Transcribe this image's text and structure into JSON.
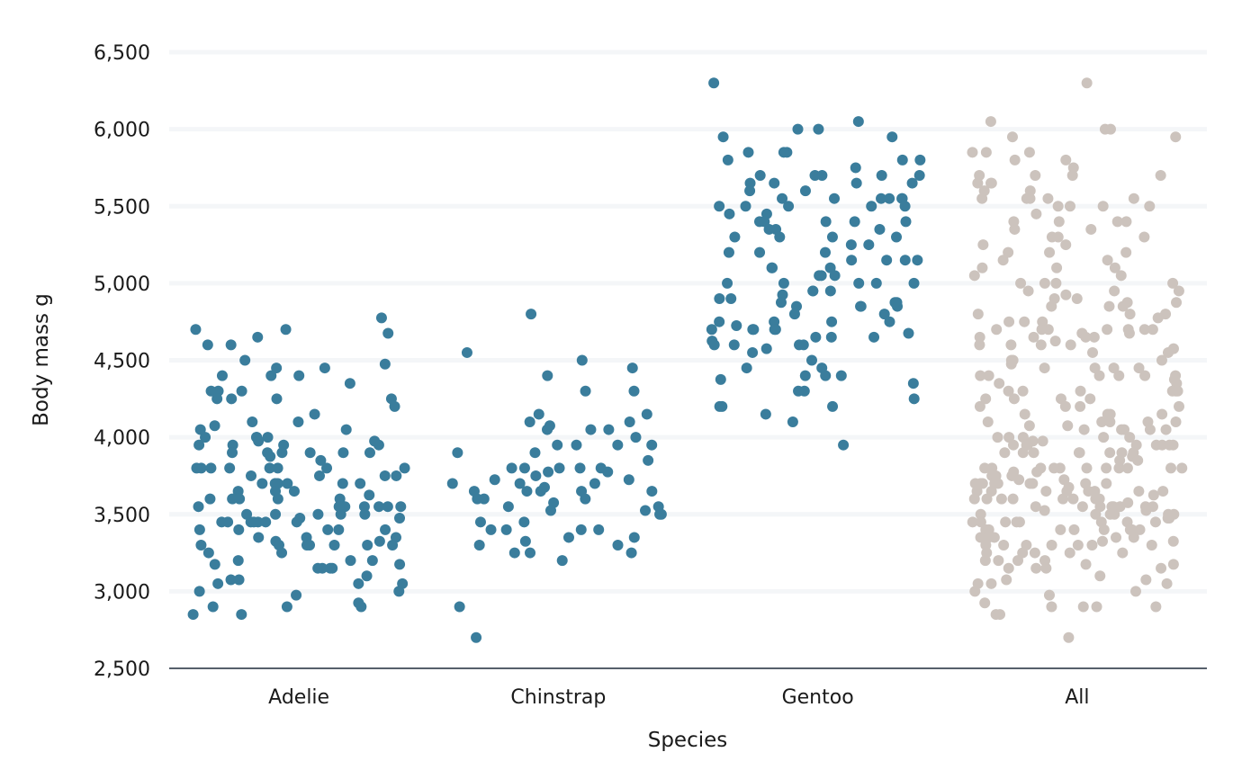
{
  "colors": {
    "species_points": "#3a7d9c",
    "all_points": "#ccc3bd",
    "grid": "#f4f6f8",
    "axis": "#1e2a3a",
    "text": "#1a1a1a",
    "background": "#ffffff"
  },
  "chart_data": {
    "type": "scatter",
    "xlabel": "Species",
    "ylabel": "Body mass g",
    "ylim": [
      2500,
      6500
    ],
    "grid": true,
    "legend": "none",
    "x_ticks": [
      "Adelie",
      "Chinstrap",
      "Gentoo",
      "All"
    ],
    "y_ticks": [
      2500,
      3000,
      3500,
      4000,
      4500,
      5000,
      5500,
      6000,
      6500
    ],
    "y_tick_labels": [
      "2,500",
      "3,000",
      "3,500",
      "4,000",
      "4,500",
      "5,000",
      "5,500",
      "6,000",
      "6,500"
    ],
    "series": [
      {
        "category": "Adelie",
        "color": "#3a7d9c",
        "values": [
          4775,
          4675,
          4600,
          4450,
          4475,
          4400,
          4400,
          4400,
          4450,
          4300,
          4300,
          4250,
          4250,
          4250,
          4100,
          4100,
          4075,
          4050,
          4000,
          4000,
          3950,
          3950,
          3950,
          3900,
          3900,
          3900,
          3900,
          3900,
          3900,
          3850,
          3800,
          3800,
          3800,
          3800,
          3800,
          3800,
          3800,
          3750,
          3750,
          3750,
          3700,
          3700,
          3700,
          3700,
          3700,
          3650,
          3650,
          3600,
          3600,
          3600,
          3600,
          3550,
          3550,
          3550,
          3550,
          3500,
          3500,
          3500,
          3475,
          3475,
          3450,
          3450,
          3450,
          3450,
          3400,
          3400,
          3400,
          3400,
          3350,
          3350,
          3350,
          3325,
          3300,
          3300,
          3300,
          3300,
          3300,
          3250,
          3250,
          3200,
          3200,
          3200,
          3175,
          3175,
          3150,
          3150,
          3150,
          3100,
          3075,
          3050,
          3050,
          3050,
          3000,
          3000,
          2975,
          2925,
          2900,
          2900,
          2900,
          2850,
          2850,
          4700,
          4700,
          4650,
          4600,
          4500,
          4350,
          4300,
          4250,
          4200,
          4150,
          4050,
          4000,
          4000,
          3950,
          3875,
          3750,
          3700,
          3600,
          3550,
          3450,
          3325,
          3300,
          3150,
          3075,
          3975,
          3550,
          3625,
          3400,
          3800,
          3450,
          3500,
          3550,
          3300,
          3500,
          3700,
          3450,
          3975,
          3650
        ]
      },
      {
        "category": "Chinstrap",
        "color": "#3a7d9c",
        "values": [
          4800,
          4550,
          4450,
          4500,
          4400,
          4300,
          4300,
          4150,
          4150,
          4100,
          4100,
          4050,
          4050,
          4050,
          4000,
          3950,
          3950,
          3950,
          3950,
          3900,
          3900,
          3850,
          3800,
          3800,
          3800,
          3800,
          3775,
          3775,
          3750,
          3725,
          3700,
          3700,
          3700,
          3650,
          3650,
          3650,
          3650,
          3600,
          3600,
          3600,
          3575,
          3550,
          3550,
          3525,
          3525,
          3500,
          3450,
          3450,
          3400,
          3400,
          3400,
          3400,
          3350,
          3350,
          3325,
          3300,
          3300,
          3250,
          3250,
          3250,
          3200,
          2900,
          2700,
          3675,
          3725,
          3650,
          4075,
          3800,
          3500
        ]
      },
      {
        "category": "Gentoo",
        "color": "#3a7d9c",
        "values": [
          6300,
          6050,
          6000,
          6000,
          5950,
          5950,
          5850,
          5850,
          5850,
          5800,
          5800,
          5750,
          5700,
          5700,
          5700,
          5700,
          5650,
          5650,
          5650,
          5600,
          5600,
          5550,
          5550,
          5550,
          5550,
          5550,
          5500,
          5500,
          5500,
          5500,
          5450,
          5400,
          5400,
          5400,
          5400,
          5350,
          5350,
          5300,
          5300,
          5300,
          5250,
          5250,
          5200,
          5200,
          5200,
          5150,
          5150,
          5100,
          5100,
          5100,
          5050,
          5050,
          5000,
          5000,
          5000,
          5000,
          4950,
          4950,
          4950,
          4925,
          4900,
          4900,
          4875,
          4875,
          4850,
          4850,
          4850,
          4800,
          4800,
          4750,
          4750,
          4750,
          4700,
          4700,
          4700,
          4700,
          4700,
          4675,
          4650,
          4650,
          4650,
          4625,
          4600,
          4600,
          4600,
          4575,
          4550,
          4500,
          4450,
          4450,
          4400,
          4400,
          4400,
          4375,
          4350,
          4300,
          4300,
          4250,
          4200,
          4200,
          4200,
          4150,
          4100,
          3950,
          5500,
          5150,
          4725,
          5000,
          5350,
          5650,
          5550,
          4850,
          5700,
          4875,
          5150,
          5450,
          4750,
          4600,
          5050,
          5300,
          5400,
          5800
        ]
      },
      {
        "category": "All",
        "color": "#ccc3bd",
        "values": [
          6300,
          6050,
          6000,
          6000,
          5950,
          5950,
          5850,
          5850,
          5850,
          5800,
          5800,
          5750,
          5700,
          5700,
          5700,
          5700,
          5650,
          5650,
          5650,
          5600,
          5600,
          5550,
          5550,
          5550,
          5550,
          5550,
          5500,
          5500,
          5500,
          5500,
          5450,
          5400,
          5400,
          5400,
          5400,
          5350,
          5350,
          5300,
          5300,
          5300,
          5250,
          5250,
          5200,
          5200,
          5200,
          5150,
          5150,
          5100,
          5100,
          5100,
          5050,
          5050,
          5000,
          5000,
          5000,
          5000,
          4950,
          4950,
          4950,
          4925,
          4900,
          4900,
          4875,
          4875,
          4850,
          4850,
          4850,
          4800,
          4800,
          4800,
          4775,
          4750,
          4750,
          4750,
          4700,
          4700,
          4700,
          4700,
          4700,
          4700,
          4700,
          4675,
          4675,
          4650,
          4650,
          4650,
          4650,
          4625,
          4600,
          4600,
          4600,
          4600,
          4575,
          4550,
          4550,
          4500,
          4500,
          4500,
          4475,
          4450,
          4450,
          4450,
          4450,
          4400,
          4400,
          4400,
          4400,
          4400,
          4400,
          4375,
          4350,
          4350,
          4300,
          4300,
          4300,
          4300,
          4300,
          4300,
          4250,
          4250,
          4250,
          4250,
          4200,
          4200,
          4200,
          4200,
          4150,
          4150,
          4150,
          4150,
          4100,
          4100,
          4100,
          4100,
          4100,
          4075,
          4075,
          4050,
          4050,
          4050,
          4050,
          4050,
          4000,
          4000,
          4000,
          4000,
          4000,
          3975,
          3975,
          3950,
          3950,
          3950,
          3950,
          3950,
          3950,
          3950,
          3950,
          3950,
          3900,
          3900,
          3900,
          3900,
          3900,
          3900,
          3900,
          3900,
          3875,
          3850,
          3850,
          3800,
          3800,
          3800,
          3800,
          3800,
          3800,
          3800,
          3800,
          3800,
          3800,
          3800,
          3775,
          3775,
          3750,
          3750,
          3750,
          3750,
          3725,
          3725,
          3700,
          3700,
          3700,
          3700,
          3700,
          3700,
          3700,
          3700,
          3700,
          3675,
          3650,
          3650,
          3650,
          3650,
          3650,
          3650,
          3650,
          3650,
          3625,
          3600,
          3600,
          3600,
          3600,
          3600,
          3600,
          3600,
          3600,
          3575,
          3550,
          3550,
          3550,
          3550,
          3550,
          3550,
          3550,
          3550,
          3525,
          3525,
          3500,
          3500,
          3500,
          3500,
          3500,
          3500,
          3475,
          3475,
          3450,
          3450,
          3450,
          3450,
          3450,
          3450,
          3450,
          3450,
          3400,
          3400,
          3400,
          3400,
          3400,
          3400,
          3400,
          3400,
          3400,
          3350,
          3350,
          3350,
          3350,
          3350,
          3325,
          3325,
          3300,
          3300,
          3300,
          3300,
          3300,
          3300,
          3300,
          3250,
          3250,
          3250,
          3250,
          3250,
          3200,
          3200,
          3200,
          3200,
          3175,
          3175,
          3150,
          3150,
          3150,
          3150,
          3100,
          3075,
          3075,
          3050,
          3050,
          3050,
          3000,
          3000,
          2975,
          2925,
          2900,
          2900,
          2900,
          2900,
          2850,
          2850,
          2700
        ]
      }
    ]
  }
}
